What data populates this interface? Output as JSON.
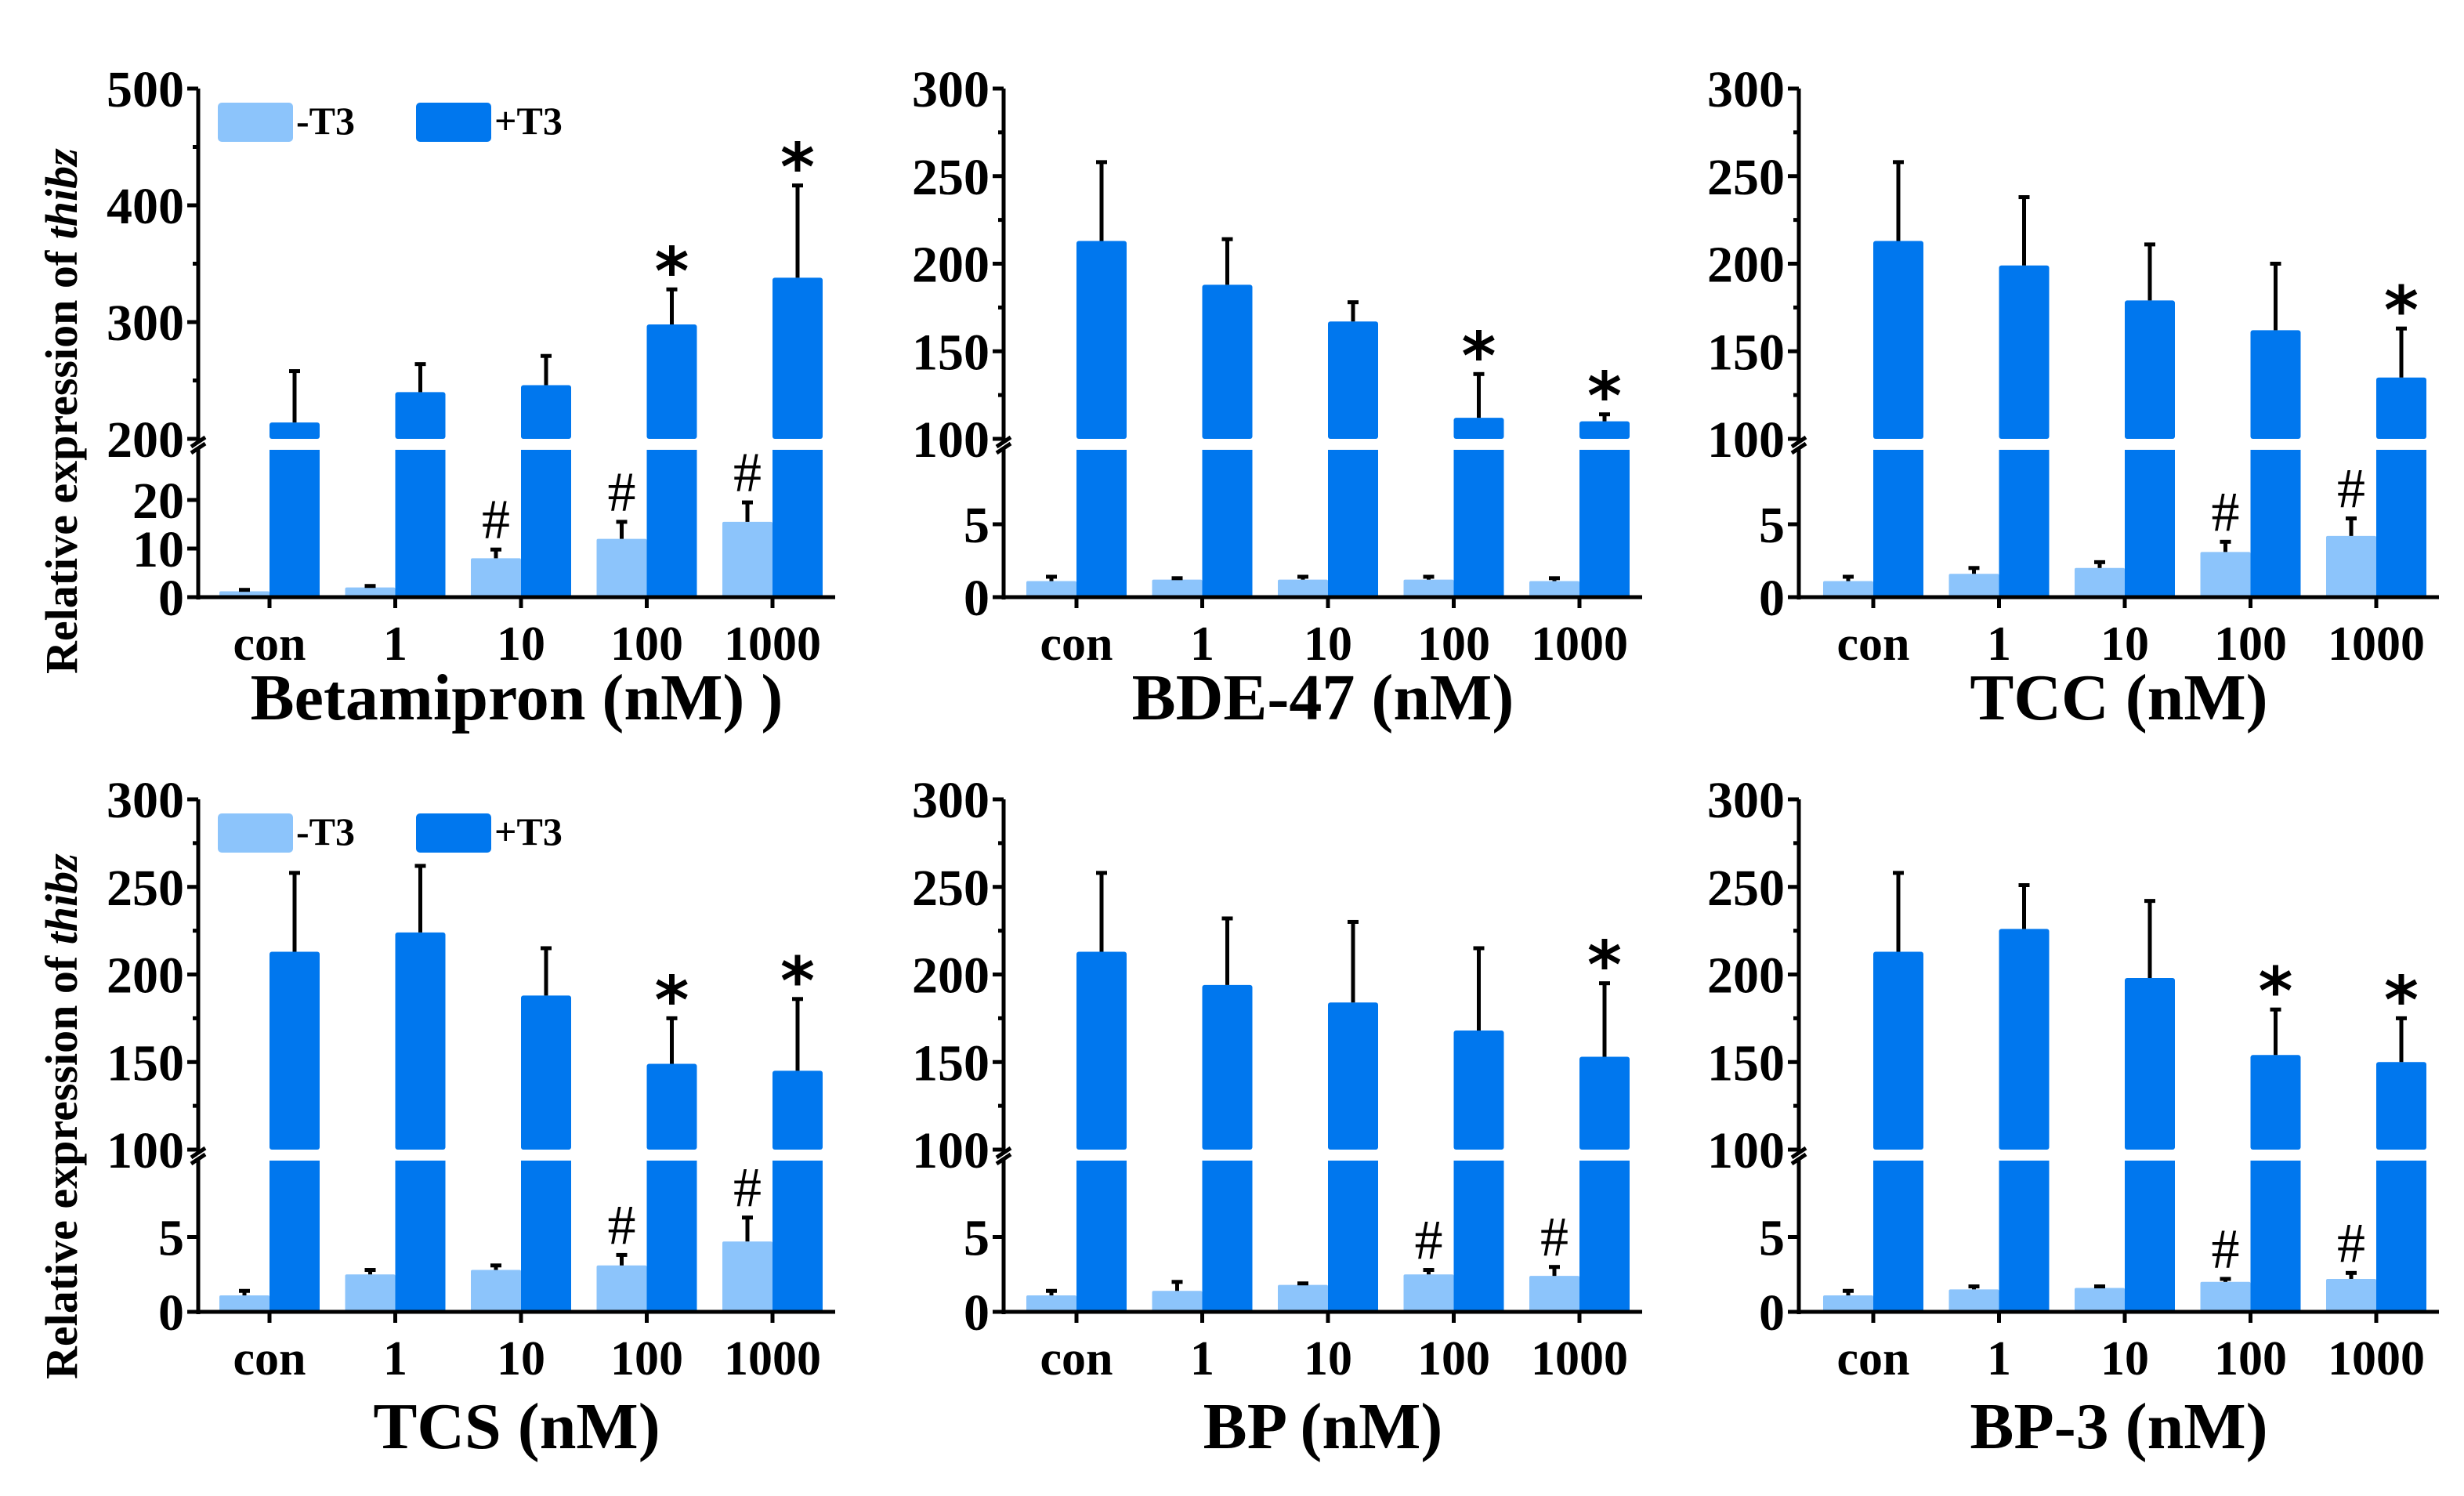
{
  "figure": {
    "y_axis_title_prefix": "Relative expression of ",
    "y_axis_title_gene": "thibz"
  },
  "legend": {
    "items": [
      {
        "label": "-T3",
        "color": "#8CC4FB"
      },
      {
        "label": "+T3",
        "color": "#0077EE"
      }
    ]
  },
  "chart_data": [
    {
      "type": "bar",
      "title": "",
      "xlabel": "Betamipron (nM) )",
      "ylabel": "Relative expression of thibz",
      "categories": [
        "con",
        "1",
        "10",
        "100",
        "1000"
      ],
      "axis_break": {
        "lower_range": [
          0,
          30
        ],
        "upper_range": [
          200,
          500
        ]
      },
      "yticks_lower": [
        0,
        10,
        20
      ],
      "yticks_upper": [
        200,
        300,
        400,
        500
      ],
      "legend": "top-left",
      "series": [
        {
          "name": "-T3",
          "color": "#8CC4FB",
          "values": [
            1.2,
            2.0,
            8.0,
            12.0,
            15.5
          ],
          "error_upper": [
            1.5,
            2.3,
            9.8,
            15.5,
            19.5
          ],
          "markers": [
            "",
            "",
            "#",
            "#",
            "#"
          ]
        },
        {
          "name": "+T3",
          "color": "#0077EE",
          "values": [
            214,
            240,
            246,
            298,
            338
          ],
          "error_upper": [
            258,
            264,
            271,
            328,
            417
          ],
          "markers": [
            "",
            "",
            "",
            "*",
            "*"
          ]
        }
      ]
    },
    {
      "type": "bar",
      "title": "",
      "xlabel": "BDE-47 (nM)",
      "ylabel": "",
      "categories": [
        "con",
        "1",
        "10",
        "100",
        "1000"
      ],
      "axis_break": {
        "lower_range": [
          0,
          10
        ],
        "upper_range": [
          100,
          300
        ]
      },
      "yticks_lower": [
        0,
        5
      ],
      "yticks_upper": [
        100,
        150,
        200,
        250,
        300
      ],
      "legend": "none",
      "series": [
        {
          "name": "-T3",
          "color": "#8CC4FB",
          "values": [
            1.1,
            1.2,
            1.2,
            1.2,
            1.1
          ],
          "error_upper": [
            1.4,
            1.3,
            1.4,
            1.4,
            1.3
          ],
          "markers": [
            "",
            "",
            "",
            "",
            ""
          ]
        },
        {
          "name": "+T3",
          "color": "#0077EE",
          "values": [
            213,
            188,
            167,
            112,
            110
          ],
          "error_upper": [
            258,
            214,
            178,
            137,
            114
          ],
          "markers": [
            "",
            "",
            "",
            "*",
            "*"
          ]
        }
      ]
    },
    {
      "type": "bar",
      "title": "",
      "xlabel": "TCC (nM)",
      "ylabel": "",
      "categories": [
        "con",
        "1",
        "10",
        "100",
        "1000"
      ],
      "axis_break": {
        "lower_range": [
          0,
          10
        ],
        "upper_range": [
          100,
          300
        ]
      },
      "yticks_lower": [
        0,
        5
      ],
      "yticks_upper": [
        100,
        150,
        200,
        250,
        300
      ],
      "legend": "none",
      "series": [
        {
          "name": "-T3",
          "color": "#8CC4FB",
          "values": [
            1.1,
            1.6,
            2.0,
            3.1,
            4.2
          ],
          "error_upper": [
            1.4,
            2.0,
            2.4,
            3.8,
            5.4
          ],
          "markers": [
            "",
            "",
            "",
            "#",
            "#"
          ]
        },
        {
          "name": "+T3",
          "color": "#0077EE",
          "values": [
            213,
            199,
            179,
            162,
            135
          ],
          "error_upper": [
            258,
            238,
            211,
            200,
            163
          ],
          "markers": [
            "",
            "",
            "",
            "",
            "*"
          ]
        }
      ]
    },
    {
      "type": "bar",
      "title": "",
      "xlabel": "TCS (nM)",
      "ylabel": "Relative expression of thibz",
      "categories": [
        "con",
        "1",
        "10",
        "100",
        "1000"
      ],
      "axis_break": {
        "lower_range": [
          0,
          10
        ],
        "upper_range": [
          100,
          300
        ]
      },
      "yticks_lower": [
        0,
        5
      ],
      "yticks_upper": [
        100,
        150,
        200,
        250,
        300
      ],
      "legend": "top-left",
      "series": [
        {
          "name": "-T3",
          "color": "#8CC4FB",
          "values": [
            1.1,
            2.5,
            2.8,
            3.1,
            4.7
          ],
          "error_upper": [
            1.4,
            2.8,
            3.1,
            3.8,
            6.3
          ],
          "markers": [
            "",
            "",
            "",
            "#",
            "#"
          ]
        },
        {
          "name": "+T3",
          "color": "#0077EE",
          "values": [
            213,
            224,
            188,
            149,
            145
          ],
          "error_upper": [
            258,
            262,
            215,
            175,
            186
          ],
          "markers": [
            "",
            "",
            "",
            "*",
            "*"
          ]
        }
      ]
    },
    {
      "type": "bar",
      "title": "",
      "xlabel": "BP (nM)",
      "ylabel": "",
      "categories": [
        "con",
        "1",
        "10",
        "100",
        "1000"
      ],
      "axis_break": {
        "lower_range": [
          0,
          10
        ],
        "upper_range": [
          100,
          300
        ]
      },
      "yticks_lower": [
        0,
        5
      ],
      "yticks_upper": [
        100,
        150,
        200,
        250,
        300
      ],
      "legend": "none",
      "series": [
        {
          "name": "-T3",
          "color": "#8CC4FB",
          "values": [
            1.1,
            1.4,
            1.8,
            2.5,
            2.4
          ],
          "error_upper": [
            1.4,
            2.0,
            1.9,
            2.8,
            3.0
          ],
          "markers": [
            "",
            "",
            "",
            "#",
            "#"
          ]
        },
        {
          "name": "+T3",
          "color": "#0077EE",
          "values": [
            213,
            194,
            184,
            168,
            153
          ],
          "error_upper": [
            258,
            232,
            230,
            215,
            195
          ],
          "markers": [
            "",
            "",
            "",
            "",
            "*"
          ]
        }
      ]
    },
    {
      "type": "bar",
      "title": "",
      "xlabel": "BP-3 (nM)",
      "ylabel": "",
      "categories": [
        "con",
        "1",
        "10",
        "100",
        "1000"
      ],
      "axis_break": {
        "lower_range": [
          0,
          10
        ],
        "upper_range": [
          100,
          300
        ]
      },
      "yticks_lower": [
        0,
        5
      ],
      "yticks_upper": [
        100,
        150,
        200,
        250,
        300
      ],
      "legend": "none",
      "series": [
        {
          "name": "-T3",
          "color": "#8CC4FB",
          "values": [
            1.1,
            1.5,
            1.6,
            2.0,
            2.2
          ],
          "error_upper": [
            1.4,
            1.7,
            1.7,
            2.2,
            2.6
          ],
          "markers": [
            "",
            "",
            "",
            "#",
            "#"
          ]
        },
        {
          "name": "+T3",
          "color": "#0077EE",
          "values": [
            213,
            226,
            198,
            154,
            150
          ],
          "error_upper": [
            258,
            251,
            242,
            180,
            175
          ],
          "markers": [
            "",
            "",
            "",
            "*",
            "*"
          ]
        }
      ]
    }
  ]
}
